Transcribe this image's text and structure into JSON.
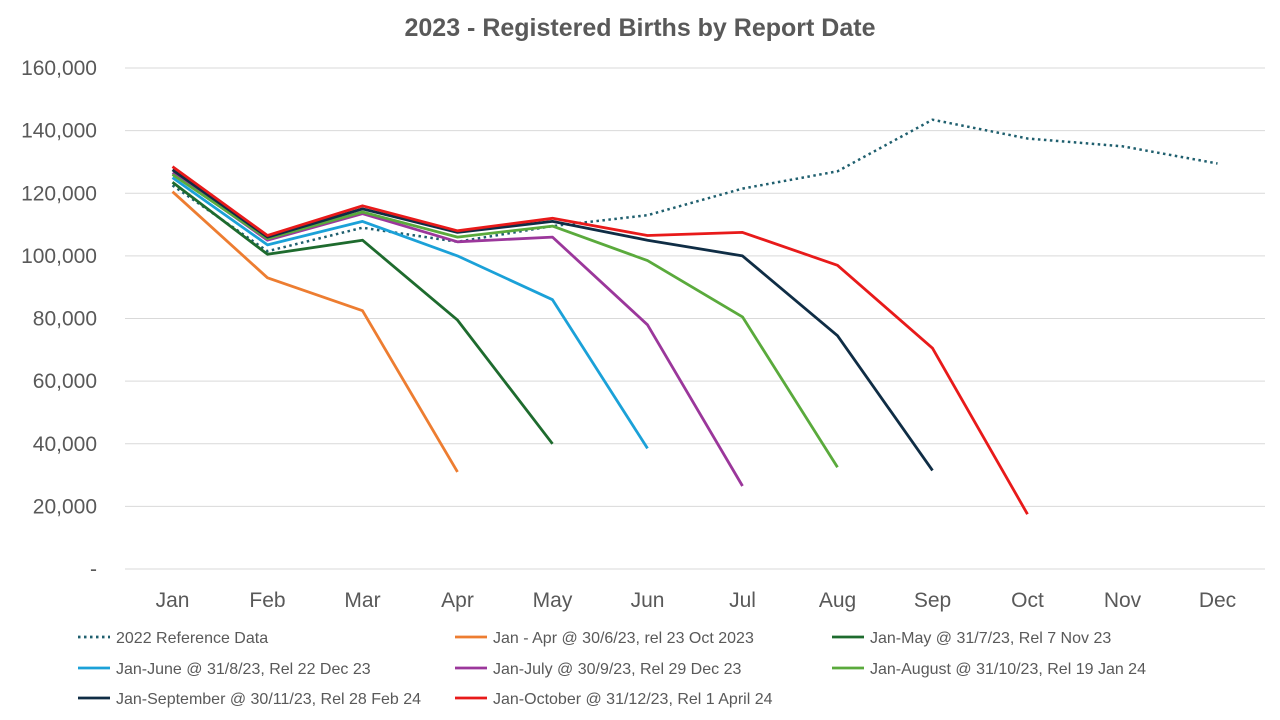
{
  "chart_data": {
    "type": "line",
    "title": "2023 - Registered Births by Report Date",
    "xlabel": "",
    "ylabel": "",
    "ylim": [
      0,
      160000
    ],
    "grid": true,
    "legend_position": "bottom",
    "categories": [
      "Jan",
      "Feb",
      "Mar",
      "Apr",
      "May",
      "Jun",
      "Jul",
      "Aug",
      "Sep",
      "Oct",
      "Nov",
      "Dec"
    ],
    "y_ticks": [
      {
        "value": 0,
        "label": "-"
      },
      {
        "value": 20000,
        "label": "20,000"
      },
      {
        "value": 40000,
        "label": "40,000"
      },
      {
        "value": 60000,
        "label": "60,000"
      },
      {
        "value": 80000,
        "label": "80,000"
      },
      {
        "value": 100000,
        "label": "100,000"
      },
      {
        "value": 120000,
        "label": "120,000"
      },
      {
        "value": 140000,
        "label": "140,000"
      },
      {
        "value": 160000,
        "label": "160,000"
      }
    ],
    "series": [
      {
        "name": "2022 Reference Data",
        "color": "#1f5f6e",
        "dash": "dotted",
        "values": [
          122500,
          101500,
          109000,
          104500,
          109500,
          113000,
          121500,
          127000,
          143500,
          137500,
          135000,
          129500
        ]
      },
      {
        "name": "Jan - Apr @ 30/6/23, rel 23 Oct 2023",
        "color": "#ed7d31",
        "dash": "solid",
        "values": [
          120500,
          93000,
          82500,
          31000,
          null,
          null,
          null,
          null,
          null,
          null,
          null,
          null
        ]
      },
      {
        "name": "Jan-May @ 31/7/23, Rel 7 Nov 23",
        "color": "#1e6b2e",
        "dash": "solid",
        "values": [
          123500,
          100500,
          105000,
          79500,
          40000,
          null,
          null,
          null,
          null,
          null,
          null,
          null
        ]
      },
      {
        "name": "Jan-June @ 31/8/23, Rel 22 Dec 23",
        "color": "#1ba1d8",
        "dash": "solid",
        "values": [
          125000,
          103500,
          111000,
          100000,
          86000,
          38500,
          null,
          null,
          null,
          null,
          null,
          null
        ]
      },
      {
        "name": "Jan-July @ 30/9/23, Rel 29 Dec 23",
        "color": "#9b379b",
        "dash": "solid",
        "values": [
          126500,
          105000,
          113500,
          104500,
          106000,
          78000,
          26500,
          null,
          null,
          null,
          null,
          null
        ]
      },
      {
        "name": "Jan-August @ 31/10/23, Rel 19 Jan 24",
        "color": "#5aaa3c",
        "dash": "solid",
        "values": [
          126000,
          105500,
          114000,
          106000,
          109500,
          98500,
          80500,
          32500,
          null,
          null,
          null,
          null
        ]
      },
      {
        "name": "Jan-September @ 30/11/23, Rel 28 Feb 24",
        "color": "#0f2d45",
        "dash": "solid",
        "values": [
          127500,
          106000,
          115000,
          107500,
          111000,
          105000,
          100000,
          74500,
          31500,
          null,
          null,
          null
        ]
      },
      {
        "name": "Jan-October @ 31/12/23, Rel 1 April 24",
        "color": "#e81a1a",
        "dash": "solid",
        "values": [
          128500,
          106500,
          116000,
          108000,
          112000,
          106500,
          107500,
          97000,
          70500,
          17500,
          null,
          null
        ]
      }
    ]
  }
}
